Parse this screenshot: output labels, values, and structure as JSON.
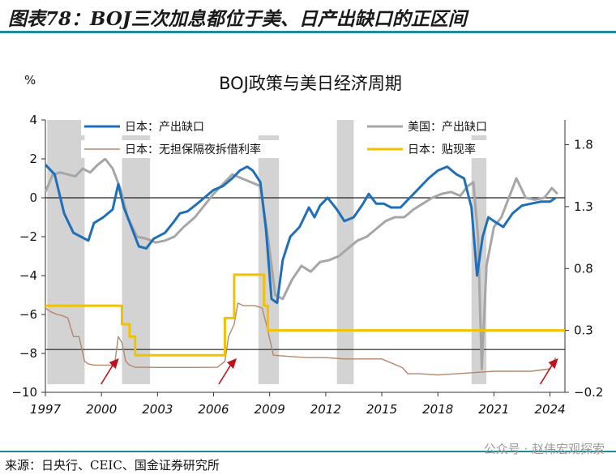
{
  "figure_title": "图表78：BOJ三次加息都位于美、日产出缺口的正区间",
  "source": "来源：日央行、CEIC、国金证券研究所",
  "watermark": "公众号 · 赵伟宏观探索",
  "colors": {
    "japan_gap": "#1f6fb8",
    "us_gap": "#a6a6a6",
    "call_rate": "#b5876a",
    "discount_rate": "#f2c200",
    "shade": "#d3d3d3",
    "arrow": "#c0121c"
  },
  "chart_data": {
    "type": "line",
    "title": "BOJ政策与美日经济周期",
    "ylabel_left": "%",
    "xlim": [
      1997,
      2024.8
    ],
    "ylim_left": [
      -10,
      4
    ],
    "ylim_right": [
      -0.2,
      2.0
    ],
    "x_ticks": [
      "1997",
      "2000",
      "2003",
      "2006",
      "2009",
      "2012",
      "2015",
      "2018",
      "2021",
      "2024"
    ],
    "y_ticks_left": [
      "4",
      "2",
      "0",
      "−2",
      "−4",
      "−6",
      "−8",
      "−10"
    ],
    "y_ticks_right": [
      "1.8",
      "1.3",
      "0.8",
      "0.3",
      "−0.2"
    ],
    "reference_lines": [
      0,
      -7.8
    ],
    "shaded_periods": [
      [
        1997.1,
        1999.1
      ],
      [
        2001.1,
        2002.6
      ],
      [
        2008.4,
        2009.5
      ],
      [
        2012.6,
        2013.5
      ],
      [
        2019.8,
        2020.6
      ]
    ],
    "policy_arrows": [
      2000.5,
      2006.8,
      2024.0
    ],
    "series": [
      {
        "name": "日本：产出缺口",
        "axis": "left",
        "x": [
          1997.0,
          1997.5,
          1998.0,
          1998.5,
          1998.9,
          1999.3,
          1999.6,
          2000.1,
          2000.6,
          2000.9,
          2001.2,
          2001.6,
          2002.0,
          2002.4,
          2002.8,
          2003.4,
          2003.9,
          2004.2,
          2004.6,
          2005.0,
          2005.5,
          2006.0,
          2006.5,
          2007.0,
          2007.4,
          2007.8,
          2008.1,
          2008.5,
          2008.8,
          2009.1,
          2009.4,
          2009.7,
          2010.1,
          2010.6,
          2011.1,
          2011.4,
          2011.7,
          2012.1,
          2012.6,
          2013.0,
          2013.5,
          2014.0,
          2014.3,
          2014.7,
          2015.1,
          2015.5,
          2016.0,
          2016.5,
          2017.0,
          2017.5,
          2018.0,
          2018.5,
          2019.0,
          2019.4,
          2019.8,
          2020.1,
          2020.4,
          2020.7,
          2021.0,
          2021.5,
          2022.0,
          2022.5,
          2023.0,
          2023.5,
          2024.0,
          2024.3
        ],
        "values": [
          1.7,
          1.2,
          -0.8,
          -1.8,
          -2.0,
          -2.2,
          -1.3,
          -1.0,
          -0.6,
          0.7,
          -0.5,
          -1.5,
          -2.5,
          -2.6,
          -2.1,
          -1.8,
          -1.2,
          -0.8,
          -0.7,
          -0.4,
          0.0,
          0.4,
          0.6,
          1.0,
          1.4,
          1.6,
          1.4,
          0.8,
          -1.6,
          -5.2,
          -5.4,
          -3.2,
          -2.0,
          -1.5,
          -0.5,
          -1.0,
          -0.4,
          0.0,
          -0.6,
          -1.2,
          -1.0,
          -0.3,
          0.2,
          -0.3,
          -0.3,
          -0.5,
          -0.5,
          0.0,
          0.5,
          1.0,
          1.4,
          1.6,
          1.2,
          1.0,
          -0.5,
          -4.0,
          -2.0,
          -1.0,
          -1.2,
          -1.5,
          -0.8,
          -0.4,
          -0.3,
          -0.2,
          -0.2,
          0.0
        ]
      },
      {
        "name": "美国：产出缺口",
        "axis": "left",
        "x": [
          1997.0,
          1997.4,
          1997.8,
          1998.2,
          1998.6,
          1999.0,
          1999.4,
          1999.8,
          2000.2,
          2000.6,
          2001.0,
          2001.4,
          2001.9,
          2002.4,
          2002.9,
          2003.4,
          2003.9,
          2004.4,
          2005.0,
          2005.5,
          2006.0,
          2006.5,
          2007.0,
          2007.5,
          2008.0,
          2008.5,
          2008.9,
          2009.3,
          2009.7,
          2010.2,
          2010.7,
          2011.2,
          2011.7,
          2012.2,
          2012.7,
          2013.2,
          2013.7,
          2014.2,
          2014.7,
          2015.2,
          2015.7,
          2016.2,
          2016.7,
          2017.2,
          2017.7,
          2018.2,
          2018.7,
          2019.2,
          2019.6,
          2019.9,
          2020.15,
          2020.35,
          2020.6,
          2021.0,
          2021.4,
          2021.8,
          2022.2,
          2022.7,
          2023.2,
          2023.7,
          2024.1,
          2024.4
        ],
        "values": [
          0.3,
          1.2,
          1.3,
          1.2,
          1.1,
          1.5,
          1.3,
          1.7,
          2.0,
          1.5,
          0.5,
          -1.0,
          -2.0,
          -2.1,
          -2.3,
          -2.2,
          -2.0,
          -1.5,
          -1.0,
          -0.4,
          0.2,
          0.7,
          1.2,
          1.0,
          0.8,
          0.6,
          -2.0,
          -5.0,
          -5.2,
          -4.2,
          -3.5,
          -3.8,
          -3.3,
          -3.2,
          -3.0,
          -2.6,
          -2.2,
          -2.0,
          -1.6,
          -1.2,
          -1.0,
          -1.0,
          -0.6,
          -0.3,
          0.0,
          0.2,
          0.3,
          0.1,
          0.6,
          0.8,
          -2.0,
          -8.8,
          -3.5,
          -1.5,
          -1.0,
          0.0,
          1.0,
          0.0,
          -0.1,
          0.0,
          0.5,
          0.2
        ]
      },
      {
        "name": "日本：无担保隔夜拆借利率",
        "axis": "right",
        "x": [
          1997.0,
          1997.3,
          1997.6,
          1997.9,
          1998.2,
          1998.5,
          1998.8,
          1999.1,
          1999.3,
          1999.6,
          2000.0,
          2000.7,
          2000.9,
          2001.1,
          2001.3,
          2001.5,
          2001.8,
          2002.0,
          2003.0,
          2005.0,
          2006.2,
          2006.6,
          2006.8,
          2007.1,
          2007.3,
          2007.6,
          2007.9,
          2008.2,
          2008.6,
          2008.9,
          2009.2,
          2010.0,
          2011.0,
          2012.0,
          2013.0,
          2014.0,
          2015.0,
          2016.1,
          2016.4,
          2017.0,
          2018.0,
          2019.0,
          2020.0,
          2021.0,
          2022.0,
          2023.0,
          2024.0,
          2024.3
        ],
        "values": [
          0.48,
          0.45,
          0.43,
          0.42,
          0.4,
          0.25,
          0.25,
          0.05,
          0.03,
          0.02,
          0.02,
          0.02,
          0.25,
          0.2,
          0.05,
          0.02,
          0.002,
          0.002,
          0.001,
          0.001,
          0.002,
          0.05,
          0.25,
          0.35,
          0.52,
          0.5,
          0.5,
          0.5,
          0.48,
          0.3,
          0.1,
          0.09,
          0.08,
          0.08,
          0.07,
          0.07,
          0.07,
          0.0,
          -0.05,
          -0.05,
          -0.06,
          -0.05,
          -0.04,
          -0.03,
          -0.03,
          -0.03,
          -0.01,
          0.08
        ]
      },
      {
        "name": "日本：贴现率",
        "axis": "right",
        "x": [
          1997.0,
          2001.1,
          2001.1,
          2001.5,
          2001.5,
          2001.8,
          2001.8,
          2006.6,
          2006.6,
          2007.1,
          2007.1,
          2008.7,
          2008.7,
          2008.9,
          2008.9,
          2024.8
        ],
        "values": [
          0.5,
          0.5,
          0.35,
          0.35,
          0.25,
          0.25,
          0.1,
          0.1,
          0.4,
          0.4,
          0.75,
          0.75,
          0.5,
          0.5,
          0.3,
          0.3
        ]
      }
    ]
  }
}
